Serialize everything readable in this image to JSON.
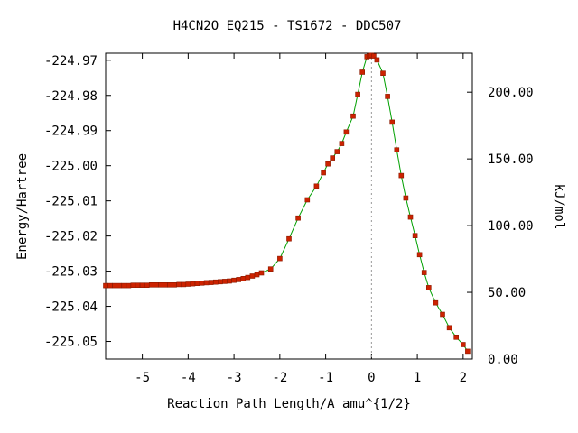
{
  "chart_data": {
    "type": "line",
    "title": "H4CN2O   EQ215 - TS1672 - DDC507",
    "xlabel": "Reaction Path Length/A amu^{1/2}",
    "ylabel": "Energy/Hartree",
    "y2label": "kJ/mol",
    "xlim": [
      -5.8,
      2.2
    ],
    "ylim": [
      -225.055,
      -224.968
    ],
    "y2lim": [
      0,
      229.2
    ],
    "xticks": [
      "-5",
      "-4",
      "-3",
      "-2",
      "-1",
      "0",
      "1",
      "2"
    ],
    "yticks": [
      "-224.97",
      "-224.98",
      "-224.99",
      "-225.00",
      "-225.01",
      "-225.02",
      "-225.03",
      "-225.04",
      "-225.05"
    ],
    "y2ticks": [
      "0.00",
      "50.00",
      "100.00",
      "150.00",
      "200.00"
    ],
    "grid": false,
    "ts_marker_x": 0.0,
    "colors": {
      "line": "#00a000",
      "marker": "#cc2200",
      "marker_edge": "#8b1a00",
      "ts_line": "#999999"
    },
    "series": [
      {
        "x": [
          -5.8,
          -5.7,
          -5.6,
          -5.5,
          -5.4,
          -5.3,
          -5.2,
          -5.1,
          -5.0,
          -4.9,
          -4.8,
          -4.7,
          -4.6,
          -4.5,
          -4.4,
          -4.3,
          -4.2,
          -4.1,
          -4.0,
          -3.9,
          -3.8,
          -3.7,
          -3.6,
          -3.5,
          -3.4,
          -3.3,
          -3.2,
          -3.1,
          -3.0,
          -2.9,
          -2.8,
          -2.7,
          -2.6,
          -2.5,
          -2.4,
          -2.2,
          -2.0,
          -1.8,
          -1.6,
          -1.4,
          -1.2,
          -1.05,
          -0.95,
          -0.85,
          -0.75,
          -0.65,
          -0.55,
          -0.4,
          -0.3,
          -0.2,
          -0.1,
          -0.05,
          0.0,
          0.05,
          0.12,
          0.25,
          0.35,
          0.45,
          0.55,
          0.65,
          0.75,
          0.85,
          0.95,
          1.05,
          1.15,
          1.25,
          1.4,
          1.55,
          1.7,
          1.85,
          2.0,
          2.1
        ],
        "y": [
          -225.0341,
          -225.0341,
          -225.0341,
          -225.0341,
          -225.0341,
          -225.0341,
          -225.034,
          -225.034,
          -225.034,
          -225.034,
          -225.0339,
          -225.0339,
          -225.0339,
          -225.0339,
          -225.0339,
          -225.0339,
          -225.0338,
          -225.0338,
          -225.0337,
          -225.0336,
          -225.0335,
          -225.0334,
          -225.0333,
          -225.0332,
          -225.0331,
          -225.033,
          -225.0329,
          -225.0328,
          -225.0326,
          -225.0324,
          -225.0321,
          -225.0318,
          -225.0314,
          -225.031,
          -225.0305,
          -225.0294,
          -225.0264,
          -225.0208,
          -225.0149,
          -225.0097,
          -225.0058,
          -225.002,
          -224.9995,
          -224.9978,
          -224.996,
          -224.9937,
          -224.9904,
          -224.9859,
          -224.9797,
          -224.9734,
          -224.969,
          -224.9688,
          -224.9686,
          -224.9688,
          -224.9699,
          -224.9737,
          -224.9803,
          -224.9876,
          -224.9955,
          -225.0028,
          -225.0092,
          -225.0146,
          -225.0199,
          -225.0253,
          -225.0304,
          -225.0347,
          -225.039,
          -225.0423,
          -225.0461,
          -225.0488,
          -225.0509,
          -225.0528
        ]
      }
    ]
  }
}
